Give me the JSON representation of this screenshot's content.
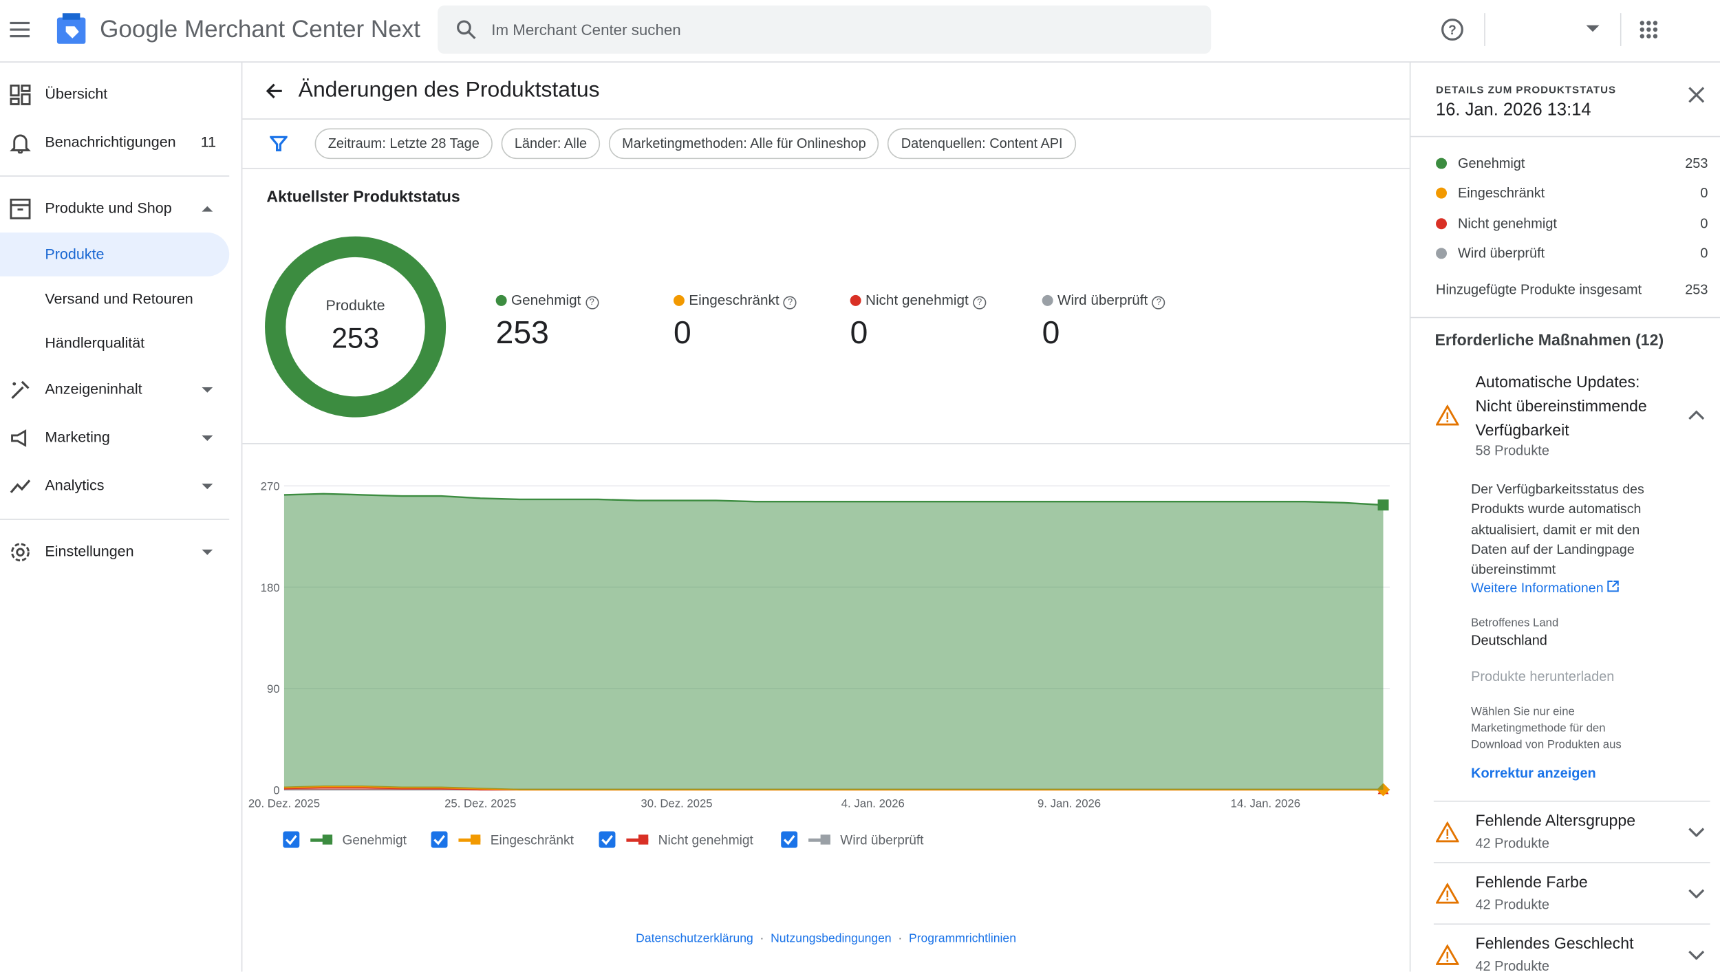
{
  "header": {
    "product": "Google Merchant Center Next",
    "search_placeholder": "Im Merchant Center suchen"
  },
  "nav": {
    "overview": "Übersicht",
    "notifications": "Benachrichtigungen",
    "notifications_count": 11,
    "products_shop": "Produkte und Shop",
    "products": "Produkte",
    "shipping": "Versand und Retouren",
    "merchant_quality": "Händlerqualität",
    "ad_content": "Anzeigeninhalt",
    "marketing": "Marketing",
    "analytics": "Analytics",
    "settings": "Einstellungen"
  },
  "page": {
    "title": "Änderungen des Produktstatus",
    "filters": [
      "Zeitraum: Letzte 28 Tage",
      "Länder: Alle",
      "Marketingmethoden: Alle für Onlineshop",
      "Datenquellen: Content API"
    ]
  },
  "summary": {
    "heading": "Aktuellster Produktstatus",
    "donut_label": "Produkte",
    "total": 253,
    "statuses": [
      {
        "name": "Genehmigt",
        "value": 253
      },
      {
        "name": "Eingeschränkt",
        "value": 0
      },
      {
        "name": "Nicht genehmigt",
        "value": 0
      },
      {
        "name": "Wird überprüft",
        "value": 0
      }
    ]
  },
  "chart_data": {
    "type": "area",
    "stacked": true,
    "grid": true,
    "categories": [
      "20. Dez. 2025",
      null,
      null,
      null,
      null,
      "25. Dez. 2025",
      null,
      null,
      null,
      null,
      "30. Dez. 2025",
      null,
      null,
      null,
      null,
      "4. Jan. 2026",
      null,
      null,
      null,
      null,
      "9. Jan. 2026",
      null,
      null,
      null,
      null,
      "14. Jan. 2026",
      null,
      null,
      null
    ],
    "series": [
      {
        "name": "Genehmigt",
        "color": "#3c8c40",
        "values": [
          260,
          260,
          259,
          259,
          259,
          258,
          258,
          258,
          258,
          257,
          257,
          257,
          256,
          256,
          256,
          256,
          256,
          256,
          256,
          256,
          256,
          256,
          256,
          256,
          256,
          256,
          256,
          255,
          253
        ]
      },
      {
        "name": "Eingeschränkt",
        "color": "#f29900",
        "values": [
          1,
          1,
          1,
          1,
          1,
          1,
          0,
          0,
          0,
          0,
          0,
          0,
          0,
          0,
          0,
          0,
          0,
          0,
          0,
          0,
          0,
          0,
          0,
          0,
          0,
          0,
          0,
          0,
          0
        ]
      },
      {
        "name": "Nicht genehmigt",
        "color": "#d93025",
        "values": [
          1,
          2,
          2,
          1,
          1,
          0,
          0,
          0,
          0,
          0,
          0,
          0,
          0,
          0,
          0,
          0,
          0,
          0,
          0,
          0,
          0,
          0,
          0,
          0,
          0,
          0,
          0,
          0,
          0
        ]
      },
      {
        "name": "Wird überprüft",
        "color": "#9aa0a6",
        "values": [
          0,
          0,
          0,
          0,
          0,
          0,
          0,
          0,
          0,
          0,
          0,
          0,
          0,
          0,
          0,
          0,
          0,
          0,
          0,
          0,
          0,
          0,
          0,
          0,
          0,
          0,
          0,
          0,
          0
        ]
      }
    ],
    "ylim": [
      0,
      270
    ],
    "yticks": [
      0,
      90,
      180,
      270
    ]
  },
  "footer": [
    "Datenschutzerklärung",
    "Nutzungsbedingungen",
    "Programmrichtlinien"
  ],
  "details": {
    "heading": "DETAILS ZUM PRODUKTSTATUS",
    "date": "16. Jan. 2026 13:14",
    "rows": [
      {
        "name": "Genehmigt",
        "value": 253
      },
      {
        "name": "Eingeschränkt",
        "value": 0
      },
      {
        "name": "Nicht genehmigt",
        "value": 0
      },
      {
        "name": "Wird überprüft",
        "value": 0
      }
    ],
    "total_label": "Hinzugefügte Produkte insgesamt",
    "total": 253,
    "actions_heading": "Erforderliche Maßnahmen (12)",
    "open_issue": {
      "title": "Automatische Updates: Nicht übereinstimmende Verfügbarkeit",
      "count": "58 Produkte",
      "description": "Der Verfügbarkeitsstatus des Produkts wurde automatisch aktualisiert, damit er mit den Daten auf der Landingpage übereinstimmt",
      "link": "Weitere Informationen",
      "country_label": "Betroffenes Land",
      "country": "Deutschland",
      "download": "Produkte herunterladen",
      "download_note": "Wählen Sie nur eine Marketingmethode für den Download von Produkten aus",
      "fix": "Korrektur anzeigen"
    },
    "issues": [
      {
        "title": "Fehlende Altersgruppe",
        "count": "42 Produkte"
      },
      {
        "title": "Fehlende Farbe",
        "count": "42 Produkte"
      },
      {
        "title": "Fehlendes Geschlecht",
        "count": "42 Produkte"
      }
    ]
  }
}
